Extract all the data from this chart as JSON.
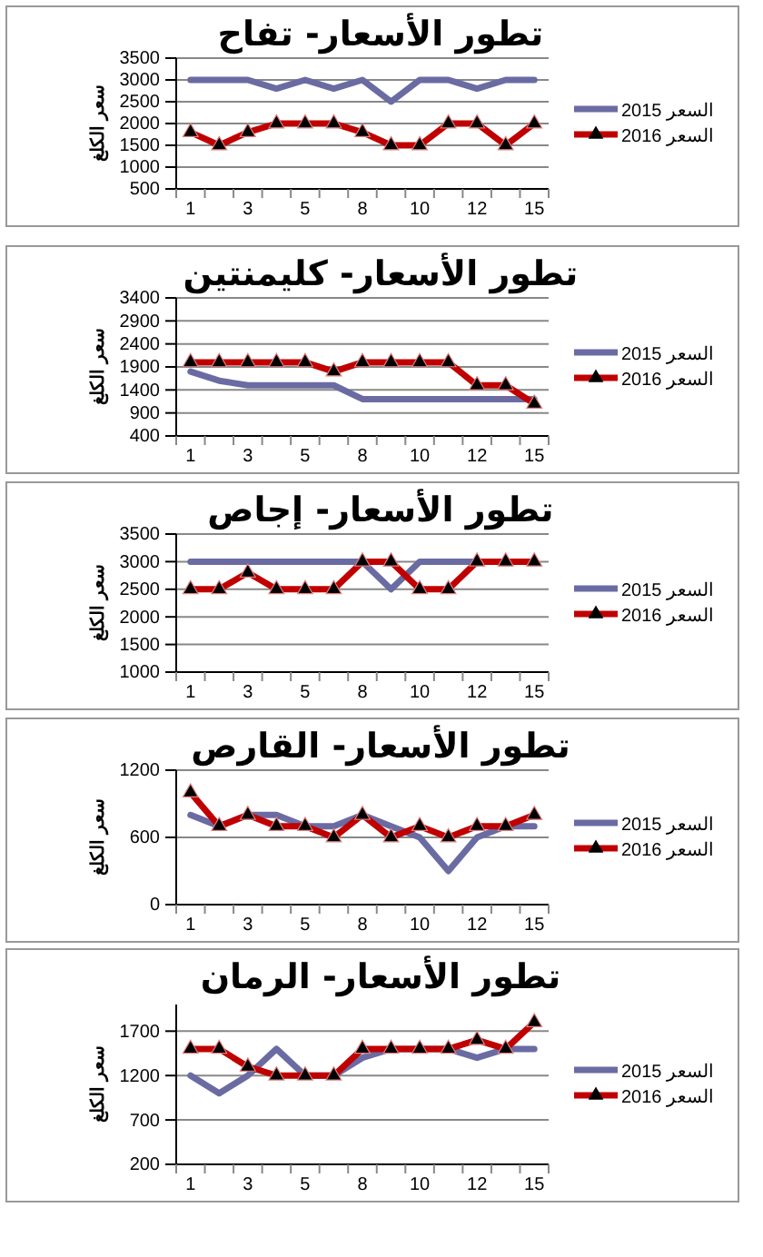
{
  "chart_data": [
    {
      "type": "line",
      "title": "تطور الأسعار- تفاح",
      "ylabel": "سعر الكلغ",
      "categories": [
        "1",
        null,
        "3",
        null,
        "5",
        null,
        "8",
        null,
        "10",
        null,
        "12",
        null,
        "15"
      ],
      "ylim": [
        500,
        3500
      ],
      "yticks": [
        500,
        1000,
        1500,
        2000,
        2500,
        3000,
        3500
      ],
      "grid": "y",
      "legend": "right",
      "series": [
        {
          "name": "السعر 2015",
          "color": "#6b6ba3",
          "marker": "none",
          "values": [
            3000,
            3000,
            3000,
            2800,
            3000,
            2800,
            3000,
            2500,
            3000,
            3000,
            2800,
            3000,
            3000
          ]
        },
        {
          "name": "السعر 2016",
          "color": "#c00000",
          "marker": "triangle",
          "values": [
            1800,
            1500,
            1800,
            2000,
            2000,
            2000,
            1800,
            1500,
            1500,
            2000,
            2000,
            1500,
            2000
          ]
        }
      ]
    },
    {
      "type": "line",
      "title": "تطور الأسعار- كليمنتين",
      "ylabel": "سعر الكلغ",
      "categories": [
        "1",
        null,
        "3",
        null,
        "5",
        null,
        "8",
        null,
        "10",
        null,
        "12",
        null,
        "15"
      ],
      "ylim": [
        400,
        3400
      ],
      "yticks": [
        400,
        900,
        1400,
        1900,
        2400,
        2900,
        3400
      ],
      "grid": "y",
      "legend": "right",
      "series": [
        {
          "name": "السعر 2015",
          "color": "#6b6ba3",
          "marker": "none",
          "values": [
            1800,
            1600,
            1500,
            1500,
            1500,
            1500,
            1200,
            1200,
            1200,
            1200,
            1200,
            1200,
            1200
          ]
        },
        {
          "name": "السعر 2016",
          "color": "#c00000",
          "marker": "triangle",
          "values": [
            2000,
            2000,
            2000,
            2000,
            2000,
            1800,
            2000,
            2000,
            2000,
            2000,
            1500,
            1500,
            1100
          ]
        }
      ]
    },
    {
      "type": "line",
      "title": "تطور الأسعار- إجاص",
      "ylabel": "سعر الكلغ",
      "categories": [
        "1",
        null,
        "3",
        null,
        "5",
        null,
        "8",
        null,
        "10",
        null,
        "12",
        null,
        "15"
      ],
      "ylim": [
        1000,
        3500
      ],
      "yticks": [
        1000,
        1500,
        2000,
        2500,
        3000,
        3500
      ],
      "grid": "y",
      "legend": "right",
      "series": [
        {
          "name": "السعر 2015",
          "color": "#6b6ba3",
          "marker": "none",
          "values": [
            3000,
            3000,
            3000,
            3000,
            3000,
            3000,
            3000,
            2500,
            3000,
            3000,
            3000,
            3000,
            3000
          ]
        },
        {
          "name": "السعر 2016",
          "color": "#c00000",
          "marker": "triangle",
          "values": [
            2500,
            2500,
            2800,
            2500,
            2500,
            2500,
            3000,
            3000,
            2500,
            2500,
            3000,
            3000,
            3000
          ]
        }
      ]
    },
    {
      "type": "line",
      "title": "تطور الأسعار- القارص",
      "ylabel": "سعر الكلغ",
      "categories": [
        "1",
        null,
        "3",
        null,
        "5",
        null,
        "8",
        null,
        "10",
        null,
        "12",
        null,
        "15"
      ],
      "ylim": [
        0,
        1200
      ],
      "yticks": [
        0,
        600,
        1200
      ],
      "grid": "y",
      "legend": "right",
      "series": [
        {
          "name": "السعر 2015",
          "color": "#6b6ba3",
          "marker": "none",
          "values": [
            800,
            700,
            800,
            800,
            700,
            700,
            800,
            700,
            600,
            300,
            600,
            700,
            700
          ]
        },
        {
          "name": "السعر 2016",
          "color": "#c00000",
          "marker": "triangle",
          "values": [
            1000,
            700,
            800,
            700,
            700,
            600,
            800,
            600,
            700,
            600,
            700,
            700,
            800
          ]
        }
      ]
    },
    {
      "type": "line",
      "title": "تطور الأسعار- الرمان",
      "ylabel": "سعر الكلغ",
      "categories": [
        "1",
        null,
        "3",
        null,
        "5",
        null,
        "8",
        null,
        "10",
        null,
        "12",
        null,
        "15"
      ],
      "ylim": [
        200,
        2000
      ],
      "yticks": [
        200,
        700,
        1200,
        1700
      ],
      "grid": "y",
      "legend": "right",
      "series": [
        {
          "name": "السعر 2015",
          "color": "#6b6ba3",
          "marker": "none",
          "values": [
            1200,
            1000,
            1200,
            1500,
            1200,
            1200,
            1400,
            1500,
            1500,
            1500,
            1400,
            1500,
            1500
          ]
        },
        {
          "name": "السعر 2016",
          "color": "#c00000",
          "marker": "triangle",
          "values": [
            1500,
            1500,
            1300,
            1200,
            1200,
            1200,
            1500,
            1500,
            1500,
            1500,
            1600,
            1500,
            1800
          ]
        }
      ]
    }
  ]
}
